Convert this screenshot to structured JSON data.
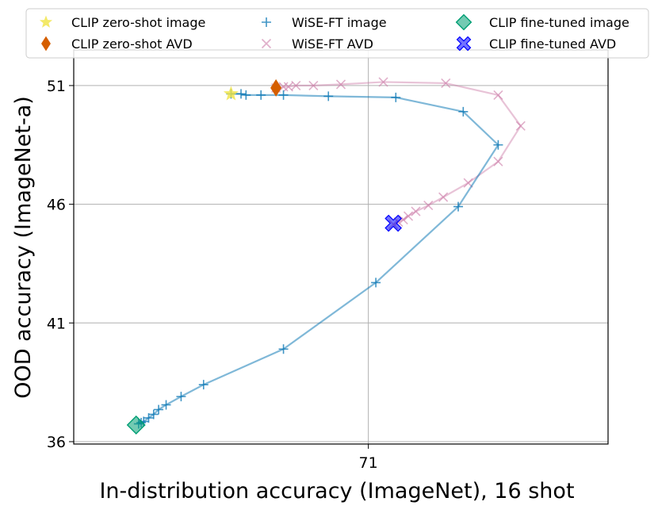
{
  "chart_data": {
    "type": "line",
    "xlabel": "In-distribution accuracy (ImageNet), 16 shot",
    "ylabel": "OOD accuracy (ImageNet-a)",
    "xlim": [
      59.2,
      80.6
    ],
    "ylim": [
      35.9,
      52.5
    ],
    "x_ticks": [
      71
    ],
    "y_ticks": [
      36,
      41,
      46,
      51
    ],
    "grid": true,
    "legend_position": "top",
    "series": [
      {
        "name": "CLIP zero-shot image",
        "kind": "marker",
        "marker": "star",
        "color": "#f0e442",
        "points": [
          [
            65.5,
            50.65
          ]
        ]
      },
      {
        "name": "CLIP zero-shot AVD",
        "kind": "marker",
        "marker": "diamond",
        "color": "#d55e00",
        "points": [
          [
            67.3,
            50.9
          ]
        ]
      },
      {
        "name": "WiSE-FT image",
        "kind": "line",
        "marker": "plus",
        "color": "#0072b2",
        "points": [
          [
            65.5,
            50.65
          ],
          [
            65.9,
            50.65
          ],
          [
            66.1,
            50.6
          ],
          [
            66.7,
            50.6
          ],
          [
            67.6,
            50.6
          ],
          [
            69.4,
            50.55
          ],
          [
            72.1,
            50.5
          ],
          [
            74.8,
            49.9
          ],
          [
            76.2,
            48.5
          ],
          [
            74.6,
            45.9
          ],
          [
            71.3,
            42.7
          ],
          [
            67.6,
            39.9
          ],
          [
            64.4,
            38.4
          ],
          [
            63.5,
            37.9
          ],
          [
            62.9,
            37.55
          ],
          [
            62.6,
            37.35
          ],
          [
            62.4,
            37.15
          ],
          [
            62.2,
            37.0
          ],
          [
            62.0,
            36.85
          ],
          [
            61.9,
            36.8
          ],
          [
            61.8,
            36.75
          ]
        ]
      },
      {
        "name": "WiSE-FT AVD",
        "kind": "line",
        "marker": "x",
        "color": "#cc79a7",
        "points": [
          [
            67.3,
            50.9
          ],
          [
            67.6,
            50.95
          ],
          [
            67.8,
            50.95
          ],
          [
            68.1,
            51.0
          ],
          [
            68.8,
            51.0
          ],
          [
            69.9,
            51.05
          ],
          [
            71.6,
            51.15
          ],
          [
            74.1,
            51.1
          ],
          [
            76.2,
            50.6
          ],
          [
            77.1,
            49.3
          ],
          [
            76.2,
            47.8
          ],
          [
            75.0,
            46.9
          ],
          [
            74.0,
            46.3
          ],
          [
            73.4,
            45.95
          ],
          [
            72.9,
            45.7
          ],
          [
            72.6,
            45.5
          ],
          [
            72.4,
            45.35
          ],
          [
            72.2,
            45.25
          ],
          [
            72.0,
            45.15
          ]
        ]
      },
      {
        "name": "CLIP fine-tuned image",
        "kind": "marker",
        "marker": "diamond-square",
        "color": "#009e73",
        "points": [
          [
            61.7,
            36.7
          ]
        ]
      },
      {
        "name": "CLIP fine-tuned AVD",
        "kind": "marker",
        "marker": "big-x",
        "color": "#0000ff",
        "points": [
          [
            72.0,
            45.2
          ]
        ]
      }
    ]
  }
}
